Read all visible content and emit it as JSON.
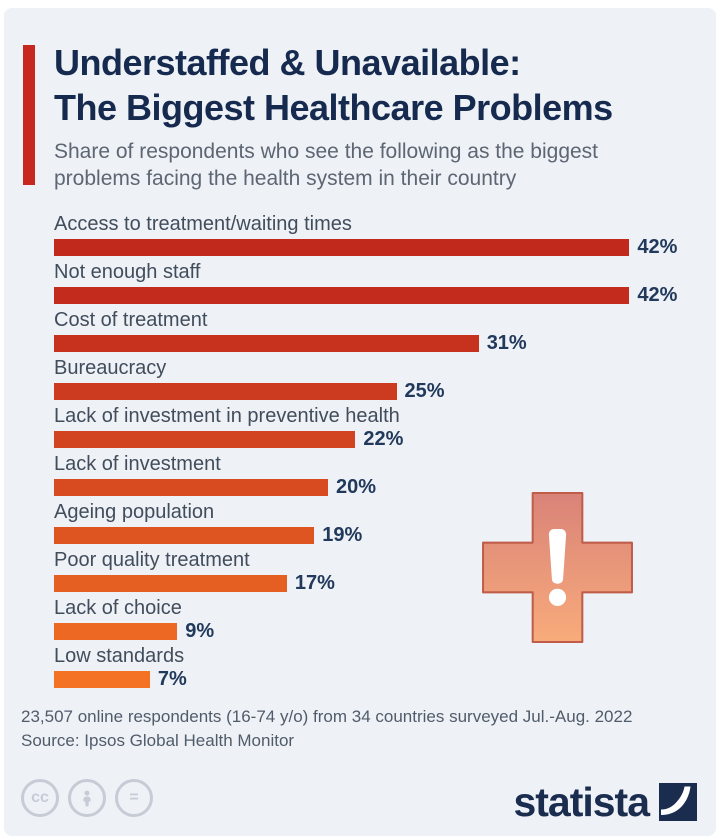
{
  "header": {
    "title_line1": "Understaffed & Unavailable:",
    "title_line2": "The Biggest Healthcare Problems",
    "subtitle_line1": "Share of respondents who see the following as the biggest",
    "subtitle_line2": "problems facing the health system in their country"
  },
  "chart_data": {
    "type": "bar",
    "orientation": "horizontal",
    "unit": "%",
    "categories": [
      "Access to treatment/waiting times",
      "Not enough staff",
      "Cost of treatment",
      "Bureaucracy",
      "Lack of investment in preventive health",
      "Lack of investment",
      "Ageing population",
      "Poor quality treatment",
      "Lack of choice",
      "Low standards"
    ],
    "values": [
      42,
      42,
      31,
      25,
      22,
      20,
      19,
      17,
      9,
      7
    ],
    "bar_colors": [
      "#c1291c",
      "#c32b1c",
      "#c7321e",
      "#cc3a1f",
      "#d24320",
      "#d84b21",
      "#df5521",
      "#e65f22",
      "#ed6923",
      "#f37223"
    ],
    "xlim": [
      0,
      45
    ],
    "grid": false,
    "legend": false,
    "title": "Understaffed & Unavailable: The Biggest Healthcare Problems",
    "xlabel": "",
    "ylabel": ""
  },
  "footer": {
    "note": "23,507 online respondents (16-74 y/o) from 34 countries surveyed Jul.-Aug. 2022",
    "source": "Source: Ipsos Global Health Monitor"
  },
  "branding": {
    "logo_text": "statista"
  },
  "license": {
    "cc_label": "cc",
    "equals_label": "="
  },
  "colors": {
    "background": "#eef1f6",
    "accent_red": "#c6281f",
    "title_navy": "#152a4e",
    "subtitle_gray": "#5d6672",
    "label_slate": "#424d5c",
    "value_navy": "#21395b",
    "footer_gray": "#515c6a",
    "logo_navy": "#1b2d4f",
    "license_gray": "#c6cbd5",
    "cross_gradient_top": "#d98379",
    "cross_gradient_bottom": "#f8ab7a",
    "cross_border": "#c05c4a"
  }
}
